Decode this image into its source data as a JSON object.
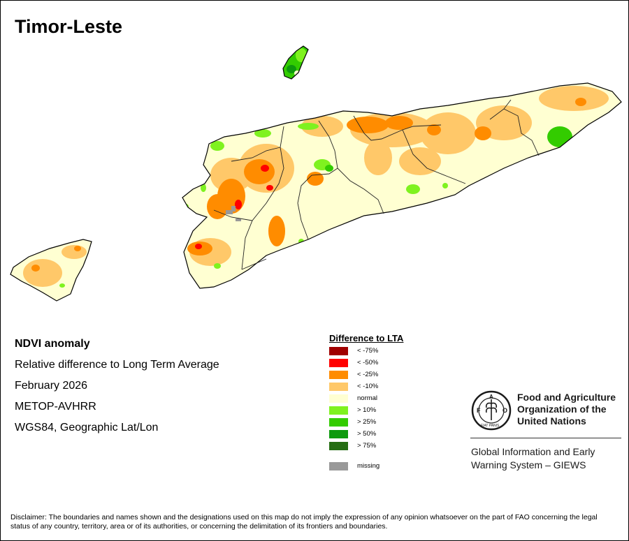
{
  "title": "Timor-Leste",
  "info": {
    "indicator": "NDVI anomaly",
    "description": "Relative difference to Long Term Average",
    "period": "February 2026",
    "sensor": "METOP-AVHRR",
    "projection": "WGS84, Geographic Lat/Lon"
  },
  "legend": {
    "title": "Difference to LTA",
    "items": [
      {
        "label": "< -75%",
        "color": "#a00000"
      },
      {
        "label": "< -50%",
        "color": "#ff0000"
      },
      {
        "label": "< -25%",
        "color": "#ff8c00"
      },
      {
        "label": "< -10%",
        "color": "#ffc869"
      },
      {
        "label": "normal",
        "color": "#ffffd2"
      },
      {
        "label": "> 10%",
        "color": "#7ff21f"
      },
      {
        "label": "> 25%",
        "color": "#33cc00"
      },
      {
        "label": "> 50%",
        "color": "#0d9a0d"
      },
      {
        "label": "> 75%",
        "color": "#256d13"
      },
      {
        "label": "missing",
        "color": "#999999"
      }
    ]
  },
  "fao": {
    "emblem_text": "FIAT PANIS",
    "line1": "Food and Agriculture",
    "line2": "Organization of the",
    "line3": "United Nations",
    "giews1": "Global Information and Early",
    "giews2": "Warning System – GIEWS"
  },
  "disclaimer": "Disclaimer: The boundaries and names shown and the designations used on this map do not imply the expression of any opinion whatsoever on the part of FAO concerning the legal status of any country, territory, area or of its authorities, or concerning the delimitation of its frontiers and boundaries."
}
